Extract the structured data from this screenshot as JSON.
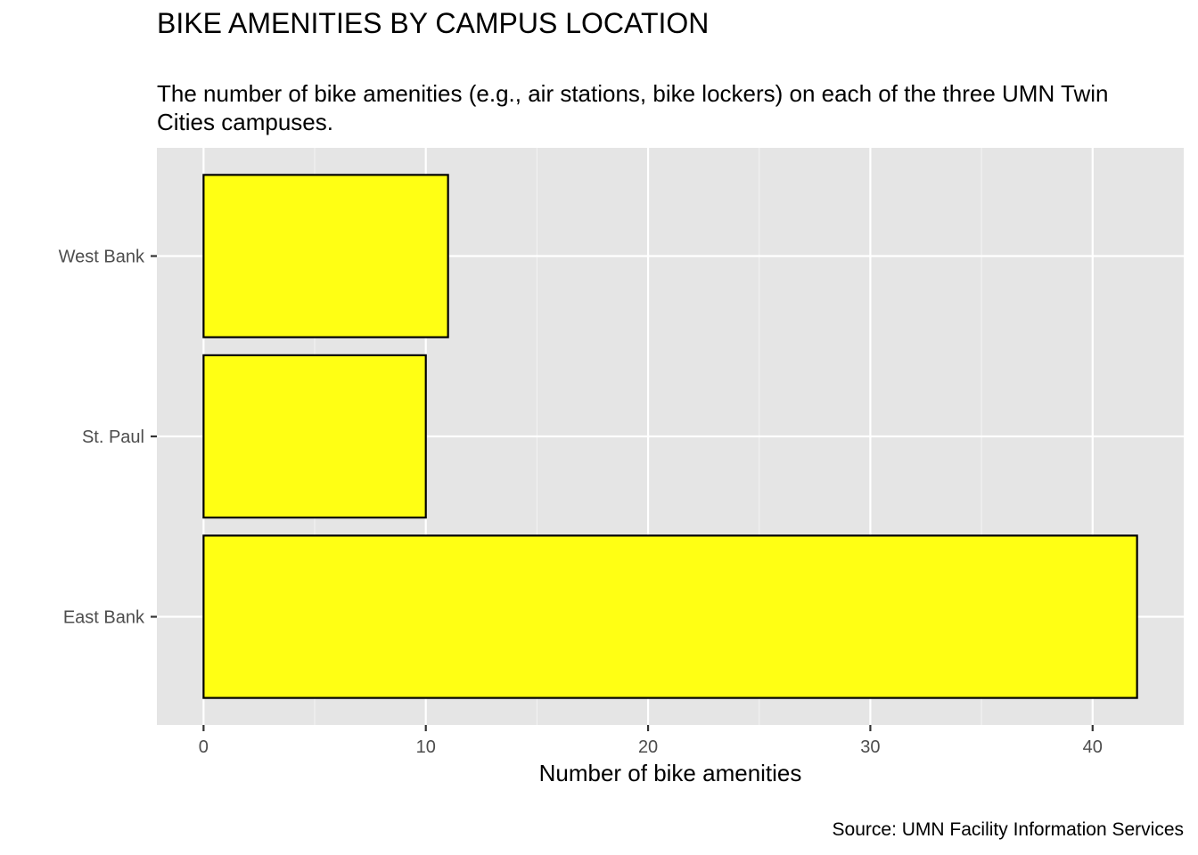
{
  "chart_data": {
    "type": "bar",
    "orientation": "horizontal",
    "title": "BIKE AMENITIES BY CAMPUS LOCATION",
    "subtitle": "The number of bike amenities (e.g., air stations, bike lockers) on each of the three UMN Twin Cities campuses.",
    "caption": "Source: UMN Facility Information Services",
    "xlabel": "Number of bike amenities",
    "ylabel": "",
    "categories": [
      "East Bank",
      "St. Paul",
      "West Bank"
    ],
    "values": [
      42,
      10,
      11
    ],
    "xlim": [
      -2.1,
      44.1
    ],
    "xticks": [
      0,
      10,
      20,
      30,
      40
    ],
    "xticklabels": [
      "0",
      "10",
      "20",
      "30",
      "40"
    ],
    "grid": true,
    "legend": "none",
    "colors": {
      "bar_fill": "#ffff14",
      "bar_stroke": "#000000",
      "panel": "#e5e5e5",
      "grid_major": "#ffffff",
      "grid_minor": "#f2f2f2",
      "tick_text": "#4d4d4d"
    }
  }
}
